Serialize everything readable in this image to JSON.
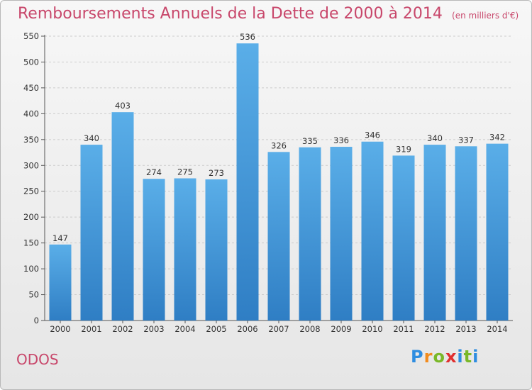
{
  "header": {
    "title": "Remboursements Annuels de la Dette de 2000 à 2014",
    "unit": "(en milliers d'€)"
  },
  "commune": "ODOS",
  "logo": {
    "text": "Proxiti"
  },
  "colors": {
    "bar_top": "#5aaee8",
    "bar_bottom": "#2f7ec4",
    "title": "#c8476b",
    "grid": "#cccccc"
  },
  "chart_data": {
    "type": "bar",
    "title": "Remboursements Annuels de la Dette de 2000 à 2014",
    "subtitle": "(en milliers d'€)",
    "categories": [
      "2000",
      "2001",
      "2002",
      "2003",
      "2004",
      "2005",
      "2006",
      "2007",
      "2008",
      "2009",
      "2010",
      "2011",
      "2012",
      "2013",
      "2014"
    ],
    "values": [
      147,
      340,
      403,
      274,
      275,
      273,
      536,
      326,
      335,
      336,
      346,
      319,
      340,
      337,
      342
    ],
    "xlabel": "",
    "ylabel": "",
    "ylim": [
      0,
      550
    ],
    "yticks": [
      0,
      50,
      100,
      150,
      200,
      250,
      300,
      350,
      400,
      450,
      500,
      550
    ],
    "grid": true,
    "data_labels": true
  }
}
